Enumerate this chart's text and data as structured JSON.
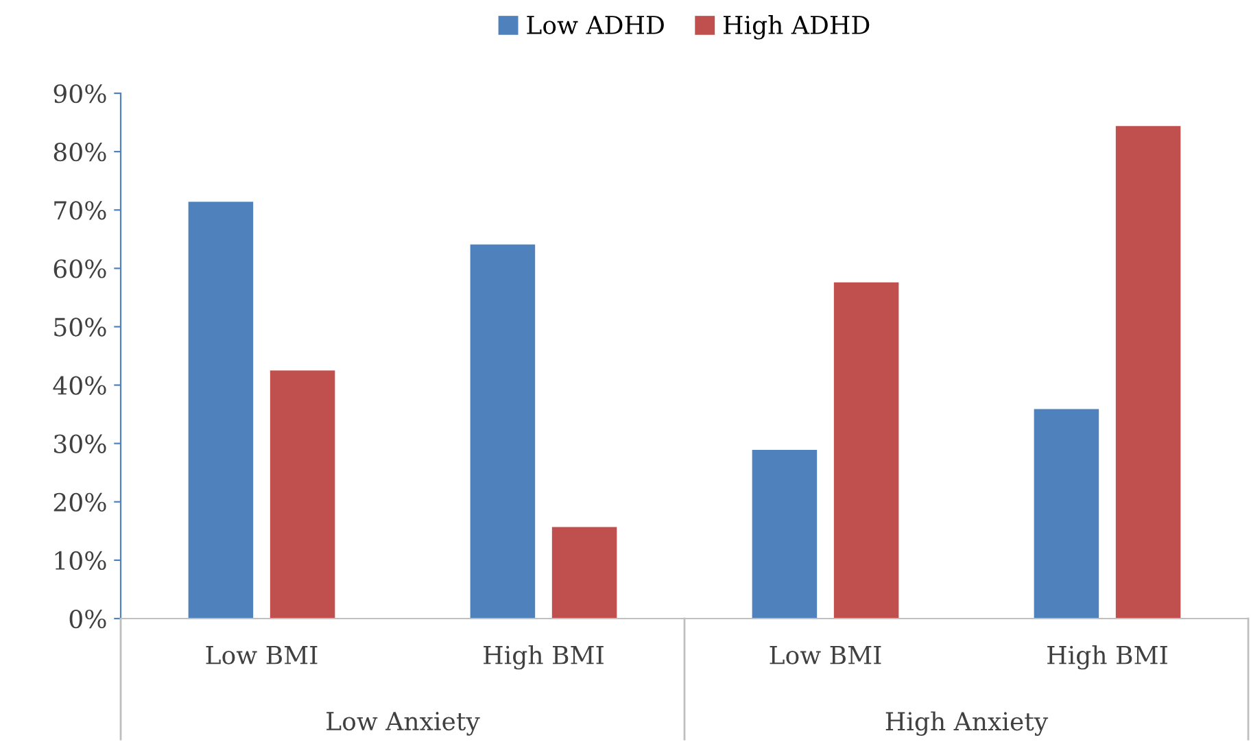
{
  "chart_data": {
    "type": "bar",
    "categories": [
      "Low BMI",
      "High BMI",
      "Low BMI",
      "High BMI"
    ],
    "series": [
      {
        "name": "Low ADHD",
        "color": "#4f81bd",
        "values": [
          71.4,
          64.1,
          28.9,
          35.9
        ]
      },
      {
        "name": "High ADHD",
        "color": "#c0504d",
        "values": [
          42.5,
          15.7,
          57.6,
          84.4
        ]
      }
    ],
    "ylim": [
      0,
      90
    ],
    "yticks": [
      {
        "value": 0,
        "label": "0%"
      },
      {
        "value": 10,
        "label": "10%"
      },
      {
        "value": 20,
        "label": "20%"
      },
      {
        "value": 30,
        "label": "30%"
      },
      {
        "value": 40,
        "label": "40%"
      },
      {
        "value": 50,
        "label": "50%"
      },
      {
        "value": 60,
        "label": "60%"
      },
      {
        "value": 70,
        "label": "70%"
      },
      {
        "value": 80,
        "label": "80%"
      },
      {
        "value": 90,
        "label": "90%"
      }
    ],
    "annotations": [
      "Low Anxiety",
      "High Anxiety"
    ],
    "legend": "top",
    "grid": false
  }
}
